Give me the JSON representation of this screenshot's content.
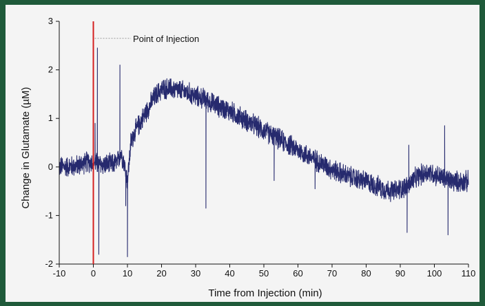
{
  "chart_data": {
    "type": "line",
    "title": "",
    "xlabel": "Time from Injection (min)",
    "ylabel": "Change in Glutamate (µM)",
    "xlim": [
      -10,
      110
    ],
    "ylim": [
      -2,
      3
    ],
    "xticks": [
      -10,
      0,
      10,
      20,
      30,
      40,
      50,
      60,
      70,
      80,
      90,
      100,
      110
    ],
    "yticks": [
      -2,
      -1,
      0,
      1,
      2,
      3
    ],
    "grid": false,
    "legend": "none",
    "series": [
      {
        "color": "#262a6e",
        "baseline": {
          "x": [
            -10,
            -5,
            -2,
            0,
            2,
            5,
            7,
            8,
            9,
            10,
            11,
            12,
            14,
            16,
            18,
            20,
            22,
            25,
            28,
            30,
            32,
            35,
            40,
            45,
            50,
            55,
            60,
            65,
            70,
            75,
            80,
            85,
            88,
            90,
            92,
            95,
            98,
            100,
            103,
            106,
            110
          ],
          "y": [
            0.0,
            0.02,
            0.1,
            0.1,
            0.05,
            0.05,
            0.08,
            0.3,
            0.1,
            -0.3,
            0.5,
            0.7,
            0.95,
            1.2,
            1.45,
            1.6,
            1.62,
            1.58,
            1.52,
            1.45,
            1.42,
            1.3,
            1.15,
            0.95,
            0.75,
            0.55,
            0.35,
            0.15,
            -0.05,
            -0.2,
            -0.3,
            -0.45,
            -0.5,
            -0.45,
            -0.4,
            -0.2,
            -0.1,
            -0.15,
            -0.25,
            -0.3,
            -0.3
          ]
        },
        "noise_amplitude": 0.18,
        "spikes": [
          {
            "x": 0.5,
            "y": 0.9
          },
          {
            "x": 1.2,
            "y": 2.45
          },
          {
            "x": 1.6,
            "y": -1.8
          },
          {
            "x": 7.8,
            "y": 2.1
          },
          {
            "x": 9.5,
            "y": -0.8
          },
          {
            "x": 10.0,
            "y": -1.85
          },
          {
            "x": 33.0,
            "y": -0.85
          },
          {
            "x": 53.0,
            "y": -0.28
          },
          {
            "x": 65.0,
            "y": -0.45
          },
          {
            "x": 92.0,
            "y": -1.35
          },
          {
            "x": 92.5,
            "y": 0.45
          },
          {
            "x": 103.0,
            "y": 0.85
          },
          {
            "x": 104.0,
            "y": -1.4
          }
        ]
      }
    ],
    "annotations": [
      {
        "text": "Point of Injection",
        "x": 0,
        "y": 2.65
      }
    ],
    "vline": {
      "x": 0,
      "color": "#d42020"
    }
  }
}
